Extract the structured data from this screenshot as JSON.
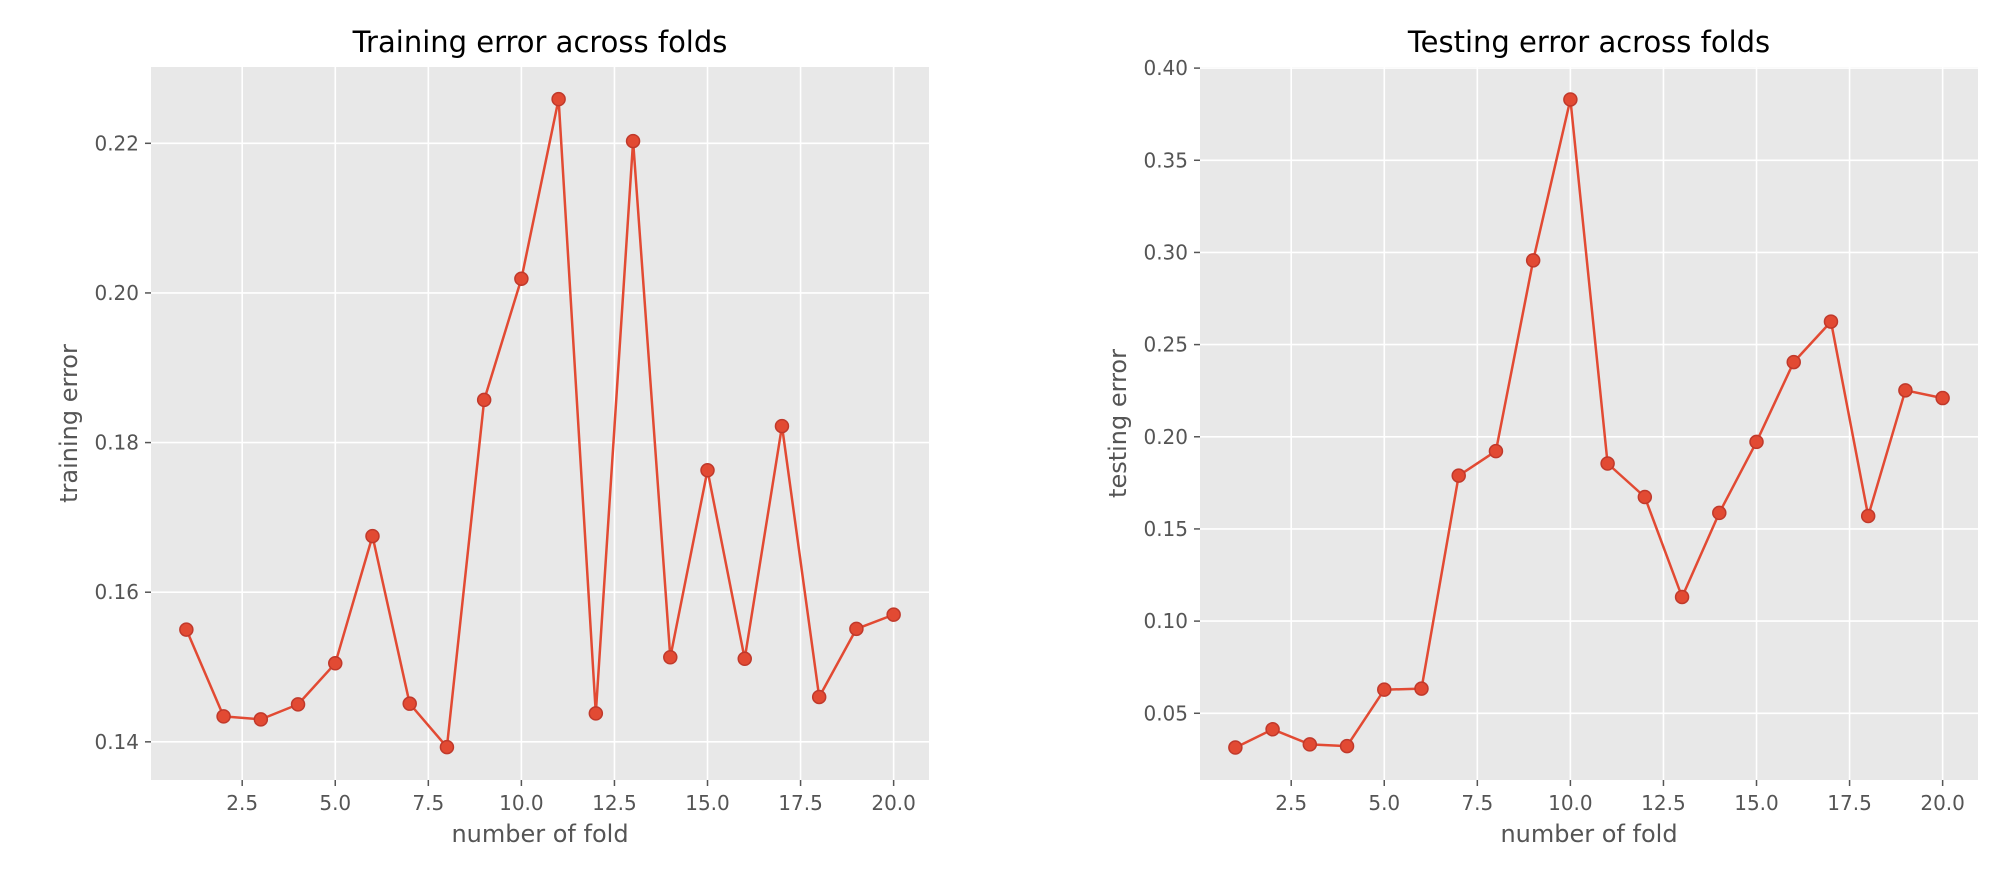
{
  "colors": {
    "series": "#E24A33",
    "marker_edge": "#C0392B",
    "background": "#E8E8E8",
    "grid": "#FFFFFF"
  },
  "chart_data": [
    {
      "type": "line",
      "title": "Training error across folds",
      "xlabel": "number of fold",
      "ylabel": "training error",
      "xlim": [
        0.05,
        20.95
      ],
      "ylim": [
        0.1349,
        0.2302
      ],
      "x_ticks": [
        2.5,
        5.0,
        7.5,
        10.0,
        12.5,
        15.0,
        17.5,
        20.0
      ],
      "x_tick_labels": [
        "2.5",
        "5.0",
        "7.5",
        "10.0",
        "12.5",
        "15.0",
        "17.5",
        "20.0"
      ],
      "y_ticks": [
        0.14,
        0.16,
        0.18,
        0.2,
        0.22
      ],
      "y_tick_labels": [
        "0.14",
        "0.16",
        "0.18",
        "0.20",
        "0.22"
      ],
      "grid": true,
      "series": [
        {
          "name": "training error",
          "x": [
            1,
            2,
            3,
            4,
            5,
            6,
            7,
            8,
            9,
            10,
            11,
            12,
            13,
            14,
            15,
            16,
            17,
            18,
            19,
            20
          ],
          "values": [
            0.155,
            0.1434,
            0.143,
            0.145,
            0.1505,
            0.1675,
            0.1451,
            0.1393,
            0.1857,
            0.2019,
            0.2259,
            0.1438,
            0.2203,
            0.1513,
            0.1763,
            0.1511,
            0.1822,
            0.146,
            0.1551,
            0.157
          ]
        }
      ]
    },
    {
      "type": "line",
      "title": "Testing error across folds",
      "xlabel": "number of fold",
      "ylabel": "testing error",
      "xlim": [
        0.05,
        20.95
      ],
      "ylim": [
        0.0138,
        0.4006
      ],
      "x_ticks": [
        2.5,
        5.0,
        7.5,
        10.0,
        12.5,
        15.0,
        17.5,
        20.0
      ],
      "x_tick_labels": [
        "2.5",
        "5.0",
        "7.5",
        "10.0",
        "12.5",
        "15.0",
        "17.5",
        "20.0"
      ],
      "y_ticks": [
        0.05,
        0.1,
        0.15,
        0.2,
        0.25,
        0.3,
        0.35,
        0.4
      ],
      "y_tick_labels": [
        "0.05",
        "0.10",
        "0.15",
        "0.20",
        "0.25",
        "0.30",
        "0.35",
        "0.40"
      ],
      "grid": true,
      "series": [
        {
          "name": "testing error",
          "x": [
            1,
            2,
            3,
            4,
            5,
            6,
            7,
            8,
            9,
            10,
            11,
            12,
            13,
            14,
            15,
            16,
            17,
            18,
            19,
            20
          ],
          "values": [
            0.0314,
            0.0413,
            0.0331,
            0.0322,
            0.0628,
            0.0634,
            0.1789,
            0.1922,
            0.2957,
            0.383,
            0.1855,
            0.1673,
            0.1131,
            0.1587,
            0.1972,
            0.2405,
            0.2625,
            0.157,
            0.2252,
            0.221
          ]
        }
      ]
    }
  ]
}
